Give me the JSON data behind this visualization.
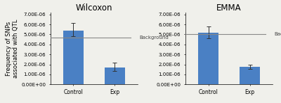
{
  "wilcoxon": {
    "title": "Wilcoxon",
    "categories": [
      "Control",
      "Exp"
    ],
    "values": [
      5.4e-06,
      1.7e-06
    ],
    "errors_up": [
      7.5e-07,
      4.5e-07
    ],
    "errors_dn": [
      6e-07,
      3.5e-07
    ],
    "background": 4.65e-06,
    "ylim": [
      0,
      7.2e-06
    ],
    "yticks": [
      0,
      1e-06,
      2e-06,
      3e-06,
      4e-06,
      5e-06,
      6e-06,
      7e-06
    ],
    "ytick_labels": [
      "0.00E+00",
      "1.00E-06",
      "2.00E-06",
      "3.00E-06",
      "4.00E-06",
      "5.00E-06",
      "6.00E-06",
      "7.00E-06"
    ]
  },
  "emma": {
    "title": "EMMA",
    "categories": [
      "Control",
      "Exp"
    ],
    "values": [
      5.15e-06,
      1.75e-06
    ],
    "errors_up": [
      6.5e-07,
      2e-07
    ],
    "errors_dn": [
      5.5e-07,
      1.8e-07
    ],
    "background": 5e-06,
    "ylim": [
      0,
      7.2e-06
    ],
    "yticks": [
      0,
      1e-06,
      2e-06,
      3e-06,
      4e-06,
      5e-06,
      6e-06,
      7e-06
    ],
    "ytick_labels": [
      "0.00E+00",
      "1.00E-06",
      "2.00E-06",
      "3.00E-06",
      "4.00E-06",
      "5.00E-06",
      "6.00E-06",
      "7.00E-06"
    ]
  },
  "bar_color": "#4a80c4",
  "background_color": "#f0f0eb",
  "ylabel": "Frequency of SNPs\nassociated with QTL",
  "background_line_color": "#888888",
  "background_label": "Background",
  "error_color": "#333333",
  "title_fontsize": 8.5,
  "tick_fontsize": 5.5,
  "label_fontsize": 6.0
}
